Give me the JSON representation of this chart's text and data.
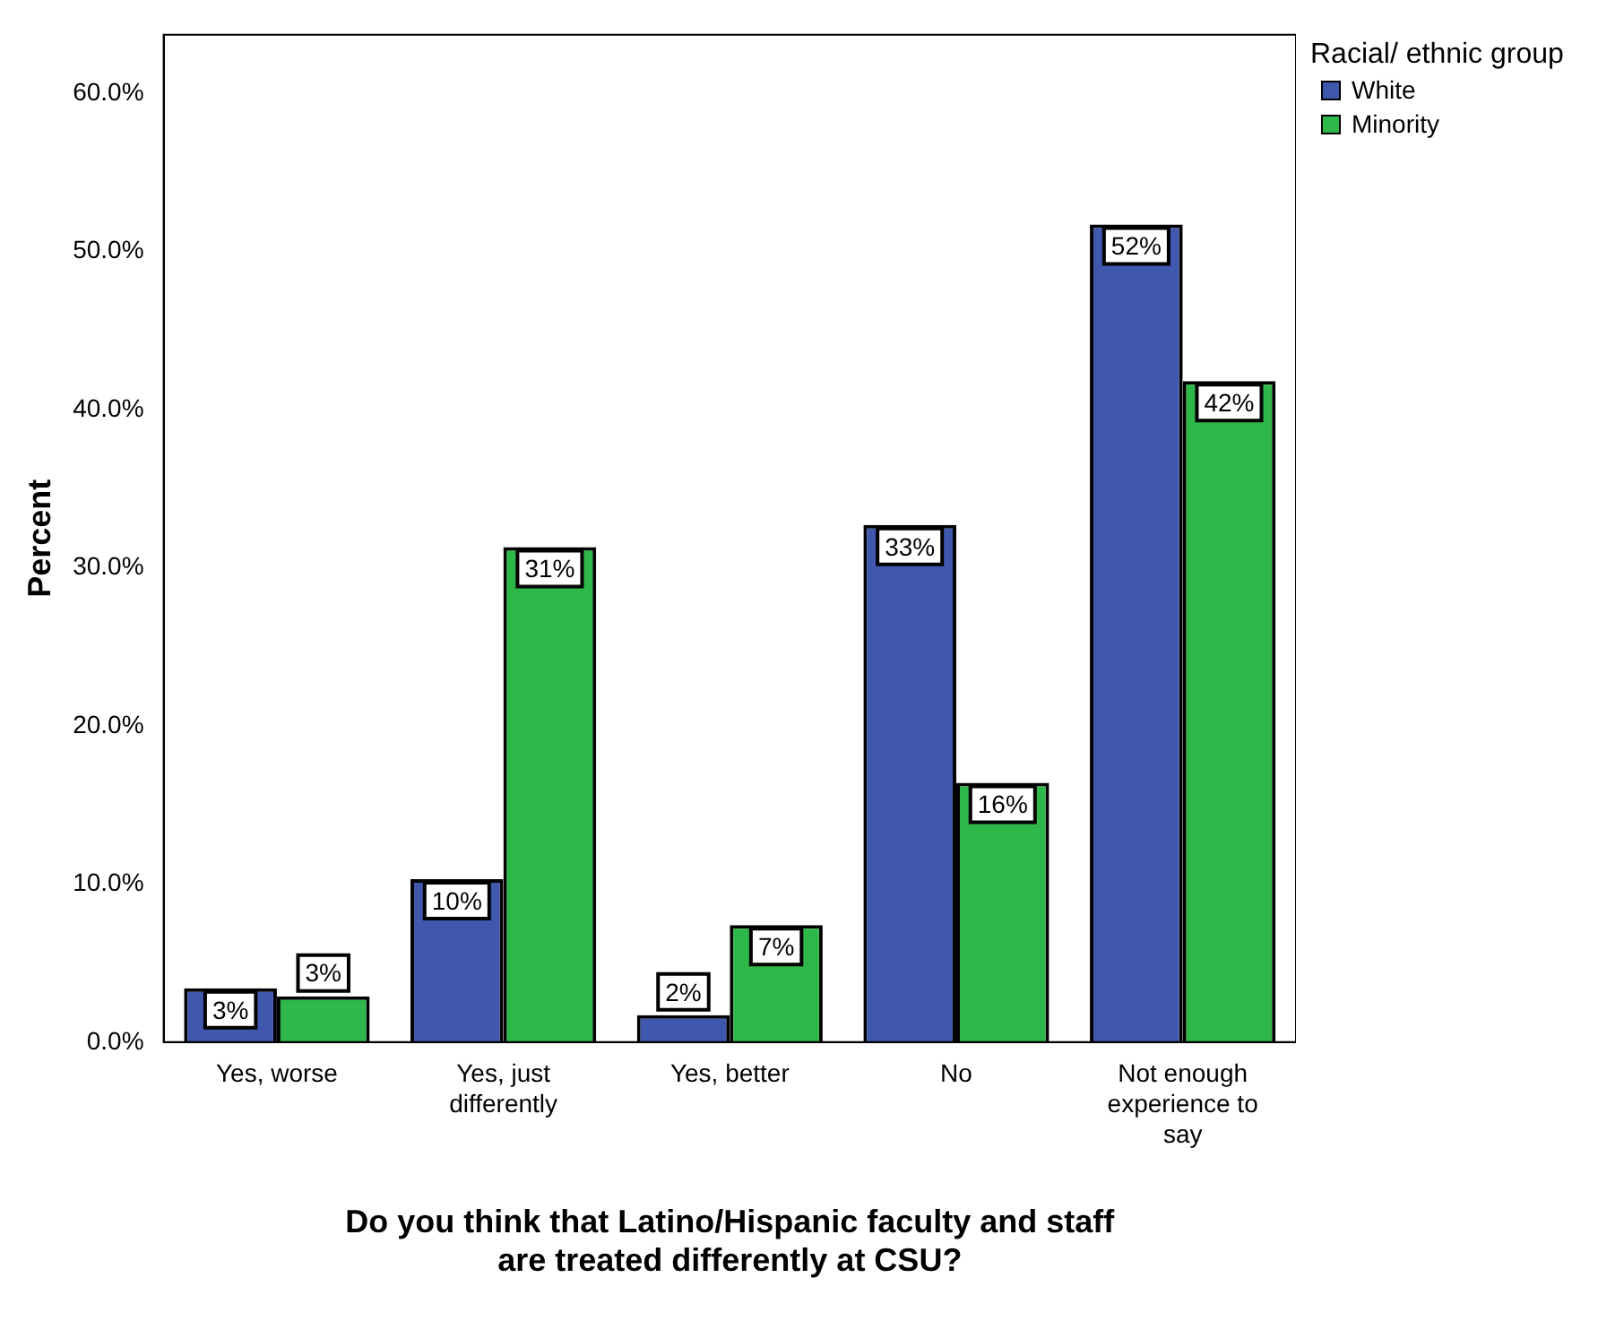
{
  "chart_data": {
    "type": "bar",
    "xlabel": "Do you think that Latino/Hispanic faculty and staff\nare treated differently at CSU?",
    "ylabel": "Percent",
    "legend_title": "Racial/ ethnic group",
    "legend": "top right",
    "categories": [
      "Yes, worse",
      "Yes, just differently",
      "Yes, better",
      "No",
      "Not enough experience to say"
    ],
    "series": [
      {
        "name": "White",
        "color": "#3f58ad",
        "values": [
          3.4,
          10.3,
          1.7,
          32.7,
          51.7
        ],
        "value_labels": [
          "3%",
          "10%",
          "2%",
          "33%",
          "52%"
        ]
      },
      {
        "name": "Minority",
        "color": "#2fb84a",
        "values": [
          2.9,
          31.3,
          7.4,
          16.4,
          41.8
        ],
        "value_labels": [
          "3%",
          "31%",
          "7%",
          "16%",
          "42%"
        ]
      }
    ],
    "ylim": [
      0,
      63.7
    ],
    "yticks": [
      {
        "value": 0,
        "label": "0.0%"
      },
      {
        "value": 10,
        "label": "10.0%"
      },
      {
        "value": 20,
        "label": "20.0%"
      },
      {
        "value": 30,
        "label": "30.0%"
      },
      {
        "value": 40,
        "label": "40.0%"
      },
      {
        "value": 50,
        "label": "50.0%"
      },
      {
        "value": 60,
        "label": "60.0%"
      }
    ],
    "grid": false
  }
}
